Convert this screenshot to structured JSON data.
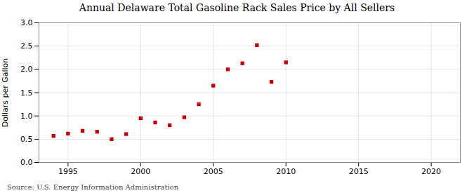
{
  "chart_data": {
    "type": "scatter",
    "title": "Annual Delaware Total Gasoline Rack Sales Price by All Sellers",
    "ylabel": "Dollars per Gallon",
    "annotation": "Source: U.S. Energy Information Administration",
    "x": [
      1994,
      1995,
      1996,
      1997,
      1998,
      1999,
      2000,
      2001,
      2002,
      2003,
      2004,
      2005,
      2006,
      2007,
      2008,
      2009,
      2010
    ],
    "values": [
      0.57,
      0.62,
      0.68,
      0.66,
      0.5,
      0.61,
      0.95,
      0.86,
      0.8,
      0.97,
      1.25,
      1.65,
      2.0,
      2.13,
      2.52,
      1.73,
      2.15
    ],
    "color": "#cc0000",
    "marker": "square",
    "xlim": [
      1993,
      2022
    ],
    "ylim": [
      0.0,
      3.0
    ],
    "xticks": [
      1995,
      2000,
      2005,
      2010,
      2015,
      2020
    ],
    "yticks": [
      {
        "value": 0,
        "label": "0.0"
      },
      0.5,
      {
        "value": 1,
        "label": "1.0"
      },
      1.5,
      {
        "value": 2,
        "label": "2.0"
      },
      2.5,
      {
        "value": 3,
        "label": "3.0"
      }
    ],
    "grid": true
  }
}
